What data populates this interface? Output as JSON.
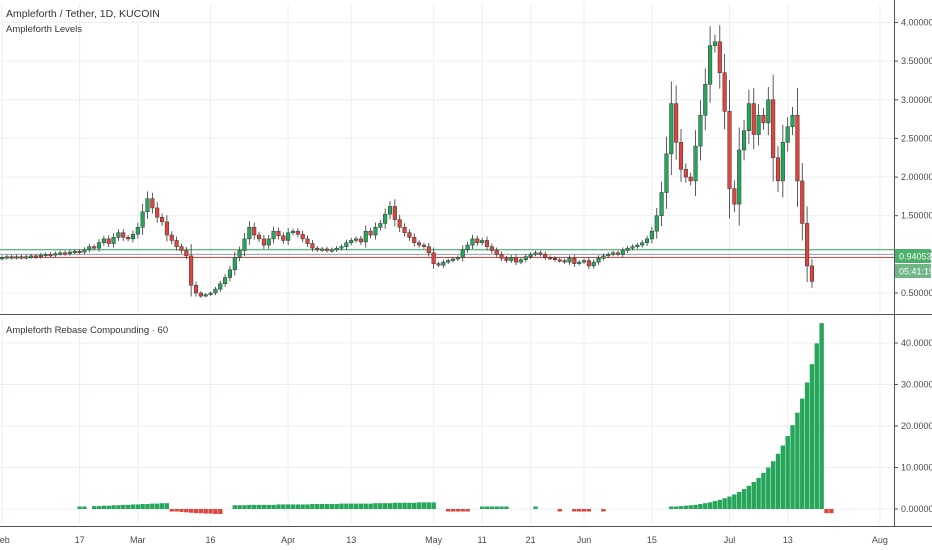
{
  "colors": {
    "up": "#26a65b",
    "down": "#e0443e",
    "grid": "#eceff2",
    "border": "#50535e",
    "level_green": "#26a65b",
    "level_red": "#e0443e",
    "level_gray": "#9aa0a6",
    "price_tag": "#4caf6a",
    "timer_tag": "#6fb586"
  },
  "panes": {
    "price": {
      "title": "Ampleforth / Tether, 1D, KUCOIN",
      "indicator": "Ampleforth Levels",
      "current_price": "0.94053",
      "countdown": "05:41:19"
    },
    "rebase": {
      "title": "Ampleforth Rebase Compounding · 60"
    }
  },
  "x_axis": {
    "labels": [
      {
        "text": "Feb",
        "day": 0
      },
      {
        "text": "17",
        "day": 16
      },
      {
        "text": "Mar",
        "day": 28
      },
      {
        "text": "16",
        "day": 43
      },
      {
        "text": "Apr",
        "day": 59
      },
      {
        "text": "13",
        "day": 72
      },
      {
        "text": "May",
        "day": 89
      },
      {
        "text": "11",
        "day": 99
      },
      {
        "text": "21",
        "day": 109
      },
      {
        "text": "Jun",
        "day": 120
      },
      {
        "text": "15",
        "day": 134
      },
      {
        "text": "Jul",
        "day": 150
      },
      {
        "text": "13",
        "day": 162
      },
      {
        "text": "Aug",
        "day": 181
      }
    ]
  },
  "chart_data": [
    {
      "type": "candlestick",
      "title": "Ampleforth / Tether, 1D, KUCOIN",
      "y_ticks": [
        "0.50000",
        "1.00000",
        "1.50000",
        "2.00000",
        "2.50000",
        "3.00000",
        "3.50000",
        "4.00000"
      ],
      "ylim": [
        0.3,
        4.2
      ],
      "levels": [
        1.06,
        1.0,
        0.96
      ],
      "close": [
        0.96,
        0.97,
        0.96,
        0.97,
        0.96,
        0.97,
        0.98,
        0.97,
        0.99,
        1.0,
        0.99,
        1.01,
        1.02,
        1.01,
        1.03,
        1.04,
        1.03,
        1.06,
        1.1,
        1.08,
        1.15,
        1.2,
        1.14,
        1.22,
        1.28,
        1.22,
        1.2,
        1.26,
        1.35,
        1.55,
        1.72,
        1.6,
        1.48,
        1.42,
        1.25,
        1.18,
        1.1,
        1.05,
        0.98,
        0.6,
        0.5,
        0.46,
        0.48,
        0.5,
        0.55,
        0.62,
        0.7,
        0.8,
        0.96,
        1.05,
        1.2,
        1.35,
        1.25,
        1.2,
        1.12,
        1.2,
        1.3,
        1.24,
        1.18,
        1.28,
        1.3,
        1.26,
        1.2,
        1.14,
        1.08,
        1.06,
        1.07,
        1.05,
        1.06,
        1.08,
        1.1,
        1.15,
        1.18,
        1.2,
        1.16,
        1.3,
        1.25,
        1.35,
        1.4,
        1.52,
        1.62,
        1.45,
        1.35,
        1.28,
        1.22,
        1.15,
        1.12,
        1.1,
        1.02,
        0.88,
        0.86,
        0.9,
        0.92,
        0.94,
        0.96,
        1.06,
        1.12,
        1.2,
        1.15,
        1.18,
        1.1,
        1.05,
        1.0,
        0.95,
        0.92,
        0.96,
        0.9,
        0.93,
        0.97,
        1.0,
        1.02,
        1.0,
        0.96,
        0.95,
        0.93,
        0.92,
        0.9,
        0.95,
        0.88,
        0.9,
        0.92,
        0.85,
        0.9,
        0.95,
        0.98,
        1.0,
        1.02,
        1.0,
        1.05,
        1.08,
        1.1,
        1.12,
        1.15,
        1.2,
        1.3,
        1.5,
        1.8,
        2.3,
        2.95,
        2.45,
        2.1,
        2.0,
        1.95,
        2.4,
        2.8,
        3.2,
        3.7,
        3.75,
        3.35,
        2.85,
        1.85,
        1.65,
        2.35,
        2.6,
        2.95,
        2.55,
        2.8,
        2.7,
        3.0,
        2.25,
        1.95,
        2.45,
        2.65,
        2.8,
        1.95,
        1.4,
        0.85,
        0.65
      ]
    },
    {
      "type": "bar",
      "title": "Ampleforth Rebase Compounding · 60",
      "y_ticks": [
        "0.00000",
        "10.00000",
        "20.00000",
        "30.00000",
        "40.00000"
      ],
      "ylim": [
        -2,
        45
      ],
      "values": [
        null,
        null,
        null,
        null,
        null,
        null,
        null,
        null,
        null,
        null,
        null,
        null,
        null,
        null,
        null,
        null,
        0.6,
        0.6,
        null,
        0.7,
        0.7,
        0.8,
        0.8,
        0.9,
        0.9,
        1.0,
        1.0,
        1.1,
        1.1,
        1.2,
        1.2,
        1.3,
        1.3,
        1.4,
        1.4,
        -0.5,
        -0.6,
        -0.7,
        -0.8,
        -0.9,
        -1.0,
        -1.0,
        -1.1,
        -1.1,
        -1.2,
        -1.2,
        null,
        null,
        0.9,
        0.9,
        0.9,
        1.0,
        1.0,
        1.0,
        1.0,
        1.0,
        1.0,
        1.1,
        1.1,
        1.1,
        1.1,
        1.1,
        1.1,
        1.1,
        1.2,
        1.2,
        1.2,
        1.2,
        1.2,
        1.2,
        1.3,
        1.3,
        1.3,
        1.3,
        1.3,
        1.3,
        1.3,
        1.4,
        1.4,
        1.4,
        1.4,
        1.5,
        1.5,
        1.5,
        1.5,
        1.5,
        1.6,
        1.6,
        1.6,
        1.6,
        null,
        null,
        -0.5,
        -0.5,
        -0.5,
        -0.6,
        -0.6,
        null,
        null,
        0.6,
        0.6,
        0.6,
        0.6,
        0.6,
        0.6,
        null,
        null,
        null,
        null,
        null,
        0.6,
        null,
        null,
        null,
        null,
        -0.4,
        null,
        null,
        -0.5,
        -0.5,
        -0.5,
        -0.5,
        null,
        null,
        -0.5,
        null,
        null,
        null,
        null,
        null,
        null,
        null,
        null,
        null,
        null,
        null,
        null,
        null,
        0.5,
        0.6,
        0.7,
        0.8,
        0.9,
        1.0,
        1.2,
        1.4,
        1.6,
        1.9,
        2.2,
        2.6,
        3.0,
        3.5,
        4.1,
        4.8,
        5.6,
        6.5,
        7.5,
        8.7,
        10.0,
        11.5,
        13.3,
        15.3,
        17.6,
        20.2,
        23.2,
        26.6,
        30.5,
        34.9,
        39.9,
        44.8,
        -1.0,
        -1.0
      ]
    }
  ]
}
